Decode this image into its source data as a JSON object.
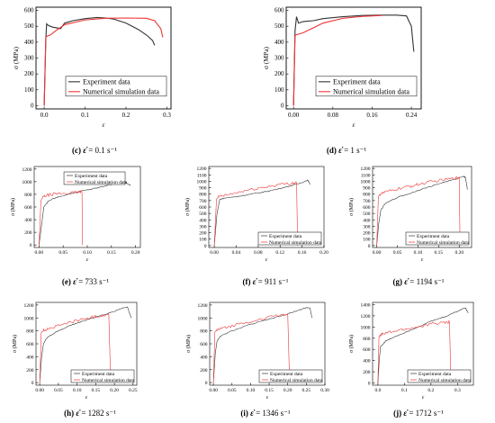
{
  "chart_data": [
    {
      "type": "line",
      "id": "c",
      "caption": {
        "letter": "(c)",
        "symbol": "ε̇",
        "text": "= 0.1 s⁻¹"
      },
      "ylabel": "σ (MPa)",
      "xlabel": "ε",
      "xlim": [
        -0.02,
        0.31
      ],
      "ylim": [
        -20,
        620
      ],
      "xticks": [
        0.0,
        0.1,
        0.2,
        0.3
      ],
      "xtick_labels": [
        "0.0",
        "0.1",
        "0.2",
        "0.3"
      ],
      "yticks": [
        0,
        100,
        200,
        300,
        400,
        500,
        600
      ],
      "ytick_labels": [
        "0",
        "100",
        "200",
        "300",
        "400",
        "500",
        "600"
      ],
      "legend": {
        "position": "center",
        "entries": [
          "Experiment data",
          "Numerical simulation data"
        ]
      },
      "series": [
        {
          "name": "Experiment data",
          "color": "#333333",
          "x": [
            0,
            0.004,
            0.006,
            0.01,
            0.02,
            0.04,
            0.05,
            0.07,
            0.1,
            0.13,
            0.15,
            0.17,
            0.2,
            0.23,
            0.25,
            0.265,
            0.27
          ],
          "y": [
            0,
            420,
            515,
            505,
            495,
            485,
            520,
            535,
            548,
            555,
            552,
            545,
            520,
            480,
            445,
            410,
            380
          ]
        },
        {
          "name": "Numerical simulation data",
          "color": "#ee3333",
          "x": [
            0,
            0.004,
            0.008,
            0.015,
            0.03,
            0.05,
            0.1,
            0.15,
            0.2,
            0.25,
            0.27,
            0.285,
            0.29
          ],
          "y": [
            0,
            432,
            438,
            445,
            475,
            510,
            540,
            550,
            552,
            550,
            535,
            485,
            430
          ]
        }
      ]
    },
    {
      "type": "line",
      "id": "d",
      "caption": {
        "letter": "(d)",
        "symbol": "ε̇",
        "text": "= 1 s⁻¹"
      },
      "ylabel": "σ (MPa)",
      "xlabel": "ε",
      "xlim": [
        -0.015,
        0.26
      ],
      "ylim": [
        -20,
        620
      ],
      "xticks": [
        0.0,
        0.08,
        0.16,
        0.24
      ],
      "xtick_labels": [
        "0.00",
        "0.08",
        "0.16",
        "0.24"
      ],
      "yticks": [
        0,
        100,
        200,
        300,
        400,
        500,
        600
      ],
      "ytick_labels": [
        "0",
        "100",
        "200",
        "300",
        "400",
        "500",
        "600"
      ],
      "legend": {
        "position": "center",
        "entries": [
          "Experiment data",
          "Numerical simulation data"
        ]
      },
      "series": [
        {
          "name": "Experiment data",
          "color": "#333333",
          "x": [
            0,
            0.003,
            0.006,
            0.01,
            0.02,
            0.04,
            0.06,
            0.1,
            0.14,
            0.18,
            0.21,
            0.23,
            0.24,
            0.245
          ],
          "y": [
            0,
            470,
            560,
            520,
            530,
            535,
            548,
            560,
            568,
            570,
            570,
            565,
            500,
            340
          ]
        },
        {
          "name": "Numerical simulation data",
          "color": "#ee3333",
          "x": [
            0,
            0.003,
            0.006,
            0.01,
            0.02,
            0.04,
            0.06,
            0.1,
            0.14,
            0.18
          ],
          "y": [
            0,
            440,
            448,
            450,
            460,
            490,
            520,
            550,
            562,
            568
          ]
        }
      ]
    },
    {
      "type": "line",
      "id": "e",
      "caption": {
        "letter": "(e)",
        "symbol": "ε̇",
        "text": "= 733 s⁻¹"
      },
      "ylabel": "σ (MPa)",
      "xlabel": "ε",
      "xlim": [
        -0.01,
        0.21
      ],
      "ylim": [
        -40,
        1240
      ],
      "xticks": [
        0.0,
        0.05,
        0.1,
        0.15,
        0.2
      ],
      "xtick_labels": [
        "0.00",
        "0.05",
        "0.10",
        "0.15",
        "0.20"
      ],
      "yticks": [
        0,
        200,
        400,
        600,
        800,
        1000,
        1200
      ],
      "ytick_labels": [
        "0",
        "200",
        "400",
        "600",
        "800",
        "1000",
        "1200"
      ],
      "legend": {
        "position": "top-center",
        "entries": [
          "Experiment data",
          "Numerical simulation data"
        ]
      },
      "series": [
        {
          "name": "Experiment data",
          "color": "#333333",
          "x": [
            0,
            0.005,
            0.01,
            0.02,
            0.04,
            0.06,
            0.08,
            0.1,
            0.12,
            0.14,
            0.16,
            0.17,
            0.18,
            0.19
          ],
          "y": [
            0,
            300,
            600,
            700,
            760,
            800,
            840,
            870,
            900,
            940,
            980,
            1000,
            990,
            940
          ]
        },
        {
          "name": "Numerical simulation data",
          "color": "#ee3333",
          "x": [
            0,
            0.004,
            0.008,
            0.02,
            0.04,
            0.06,
            0.08,
            0.089,
            0.09
          ],
          "y": [
            0,
            700,
            760,
            790,
            810,
            820,
            830,
            840,
            0
          ]
        }
      ]
    },
    {
      "type": "line",
      "id": "f",
      "caption": {
        "letter": "(f)",
        "symbol": "ε̇",
        "text": "= 911 s⁻¹"
      },
      "ylabel": "σ (MPa)",
      "xlabel": "ε",
      "xlim": [
        -0.01,
        0.2
      ],
      "ylim": [
        -30,
        1230
      ],
      "xticks": [
        0.0,
        0.04,
        0.08,
        0.12,
        0.16,
        0.2
      ],
      "xtick_labels": [
        "0.00",
        "0.04",
        "0.08",
        "0.12",
        "0.16",
        "0.20"
      ],
      "yticks": [
        0,
        100,
        200,
        300,
        400,
        500,
        600,
        700,
        800,
        900,
        1000,
        1100,
        1200
      ],
      "ytick_labels": [
        "0",
        "100",
        "200",
        "300",
        "400",
        "500",
        "600",
        "700",
        "800",
        "900",
        "1000",
        "1100",
        "1200"
      ],
      "legend": {
        "position": "bottom-right",
        "entries": [
          "Experiment data",
          "Numerical simulation data"
        ]
      },
      "series": [
        {
          "name": "Experiment data",
          "color": "#333333",
          "x": [
            0,
            0.005,
            0.01,
            0.02,
            0.04,
            0.06,
            0.08,
            0.1,
            0.12,
            0.14,
            0.16,
            0.17,
            0.175
          ],
          "y": [
            0,
            500,
            720,
            740,
            760,
            790,
            820,
            850,
            890,
            930,
            980,
            1020,
            950
          ]
        },
        {
          "name": "Numerical simulation data",
          "color": "#ee3333",
          "x": [
            0,
            0.004,
            0.008,
            0.02,
            0.04,
            0.06,
            0.08,
            0.1,
            0.12,
            0.14,
            0.15,
            0.152
          ],
          "y": [
            0,
            720,
            760,
            780,
            820,
            860,
            890,
            920,
            950,
            970,
            980,
            0
          ]
        }
      ]
    },
    {
      "type": "line",
      "id": "g",
      "caption": {
        "letter": "(g)",
        "symbol": "ε̇",
        "text": "= 1194 s⁻¹"
      },
      "ylabel": "σ (MPa)",
      "xlabel": "ε",
      "xlim": [
        -0.01,
        0.23
      ],
      "ylim": [
        -30,
        1230
      ],
      "xticks": [
        0.0,
        0.05,
        0.1,
        0.15,
        0.2
      ],
      "xtick_labels": [
        "0.00",
        "0.05",
        "0.10",
        "0.15",
        "0.20"
      ],
      "yticks": [
        0,
        100,
        200,
        300,
        400,
        500,
        600,
        700,
        800,
        900,
        1000,
        1100,
        1200
      ],
      "ytick_labels": [
        "0",
        "100",
        "200",
        "300",
        "400",
        "500",
        "600",
        "700",
        "800",
        "900",
        "1000",
        "1100",
        "1200"
      ],
      "legend": {
        "position": "bottom-right",
        "entries": [
          "Experiment data",
          "Numerical simulation data"
        ]
      },
      "series": [
        {
          "name": "Experiment data",
          "color": "#333333",
          "x": [
            0,
            0.005,
            0.01,
            0.02,
            0.05,
            0.08,
            0.1,
            0.13,
            0.16,
            0.19,
            0.21,
            0.215,
            0.22
          ],
          "y": [
            0,
            350,
            550,
            650,
            750,
            810,
            860,
            920,
            980,
            1030,
            1080,
            1060,
            870
          ]
        },
        {
          "name": "Numerical simulation data",
          "color": "#ee3333",
          "x": [
            0,
            0.004,
            0.008,
            0.02,
            0.05,
            0.08,
            0.1,
            0.13,
            0.16,
            0.19,
            0.2,
            0.202
          ],
          "y": [
            0,
            760,
            800,
            830,
            880,
            920,
            950,
            990,
            1020,
            1050,
            1060,
            0
          ]
        }
      ]
    },
    {
      "type": "line",
      "id": "h",
      "caption": {
        "letter": "(h)",
        "symbol": "ε̇",
        "text": "= 1282 s⁻¹"
      },
      "ylabel": "σ (MPa)",
      "xlabel": "ε",
      "xlim": [
        -0.01,
        0.26
      ],
      "ylim": [
        -40,
        1240
      ],
      "xticks": [
        0.0,
        0.05,
        0.1,
        0.15,
        0.2,
        0.25
      ],
      "xtick_labels": [
        "0.00",
        "0.05",
        "0.10",
        "0.15",
        "0.20",
        "0.25"
      ],
      "yticks": [
        0,
        200,
        400,
        600,
        800,
        1000,
        1200
      ],
      "ytick_labels": [
        "0",
        "200",
        "400",
        "600",
        "800",
        "1000",
        "1200"
      ],
      "legend": {
        "position": "bottom-right",
        "entries": [
          "Experiment data",
          "Numerical simulation data"
        ]
      },
      "series": [
        {
          "name": "Experiment data",
          "color": "#333333",
          "x": [
            0,
            0.005,
            0.01,
            0.02,
            0.05,
            0.08,
            0.1,
            0.13,
            0.16,
            0.19,
            0.22,
            0.235,
            0.245
          ],
          "y": [
            0,
            400,
            600,
            700,
            800,
            880,
            920,
            980,
            1030,
            1080,
            1150,
            1170,
            1000
          ]
        },
        {
          "name": "Numerical simulation data",
          "color": "#ee3333",
          "x": [
            0,
            0.004,
            0.008,
            0.02,
            0.05,
            0.08,
            0.1,
            0.13,
            0.16,
            0.185,
            0.19
          ],
          "y": [
            0,
            770,
            800,
            830,
            880,
            930,
            960,
            1000,
            1030,
            1060,
            0
          ]
        }
      ]
    },
    {
      "type": "line",
      "id": "i",
      "caption": {
        "letter": "(i)",
        "symbol": "ε̇",
        "text": "= 1346 s⁻¹"
      },
      "ylabel": "σ (MPa)",
      "xlabel": "ε",
      "xlim": [
        -0.01,
        0.3
      ],
      "ylim": [
        -40,
        1240
      ],
      "xticks": [
        0.0,
        0.05,
        0.1,
        0.15,
        0.2,
        0.25,
        0.3
      ],
      "xtick_labels": [
        "0.00",
        "0.05",
        "0.10",
        "0.15",
        "0.20",
        "0.25",
        "0.30"
      ],
      "yticks": [
        0,
        200,
        400,
        600,
        800,
        1000,
        1200
      ],
      "ytick_labels": [
        "0",
        "200",
        "400",
        "600",
        "800",
        "1000",
        "1200"
      ],
      "legend": {
        "position": "bottom-right",
        "entries": [
          "Experiment data",
          "Numerical simulation data"
        ]
      },
      "series": [
        {
          "name": "Experiment data",
          "color": "#333333",
          "x": [
            0,
            0.005,
            0.01,
            0.02,
            0.05,
            0.1,
            0.15,
            0.2,
            0.23,
            0.25,
            0.26,
            0.265
          ],
          "y": [
            0,
            450,
            650,
            720,
            800,
            900,
            980,
            1060,
            1120,
            1160,
            1150,
            1000
          ]
        },
        {
          "name": "Numerical simulation data",
          "color": "#ee3333",
          "x": [
            0,
            0.004,
            0.008,
            0.02,
            0.05,
            0.1,
            0.15,
            0.2,
            0.205
          ],
          "y": [
            0,
            780,
            810,
            830,
            880,
            950,
            1010,
            1060,
            0
          ]
        }
      ]
    },
    {
      "type": "line",
      "id": "j",
      "caption": {
        "letter": "(j)",
        "symbol": "ε̇",
        "text": "= 1712 s⁻¹"
      },
      "ylabel": "σ (MPa)",
      "xlabel": "ε",
      "xlim": [
        -0.02,
        0.36
      ],
      "ylim": [
        -40,
        1440
      ],
      "xticks": [
        0.0,
        0.1,
        0.2,
        0.3
      ],
      "xtick_labels": [
        "0.0",
        "0.1",
        "0.2",
        "0.3"
      ],
      "yticks": [
        0,
        200,
        400,
        600,
        800,
        1000,
        1200,
        1400
      ],
      "ytick_labels": [
        "0",
        "200",
        "400",
        "600",
        "800",
        "1000",
        "1200",
        "1400"
      ],
      "legend": {
        "position": "bottom-right",
        "entries": [
          "Experiment data",
          "Numerical simulation data"
        ]
      },
      "series": [
        {
          "name": "Experiment data",
          "color": "#333333",
          "x": [
            0,
            0.005,
            0.01,
            0.03,
            0.06,
            0.1,
            0.15,
            0.2,
            0.25,
            0.3,
            0.33,
            0.34
          ],
          "y": [
            0,
            400,
            650,
            750,
            820,
            900,
            1000,
            1100,
            1180,
            1280,
            1350,
            1250
          ]
        },
        {
          "name": "Numerical simulation data",
          "color": "#ee3333",
          "x": [
            0,
            0.004,
            0.008,
            0.02,
            0.06,
            0.1,
            0.15,
            0.2,
            0.25,
            0.27,
            0.275
          ],
          "y": [
            0,
            820,
            850,
            880,
            920,
            960,
            1000,
            1050,
            1080,
            1090,
            0
          ]
        }
      ]
    }
  ]
}
